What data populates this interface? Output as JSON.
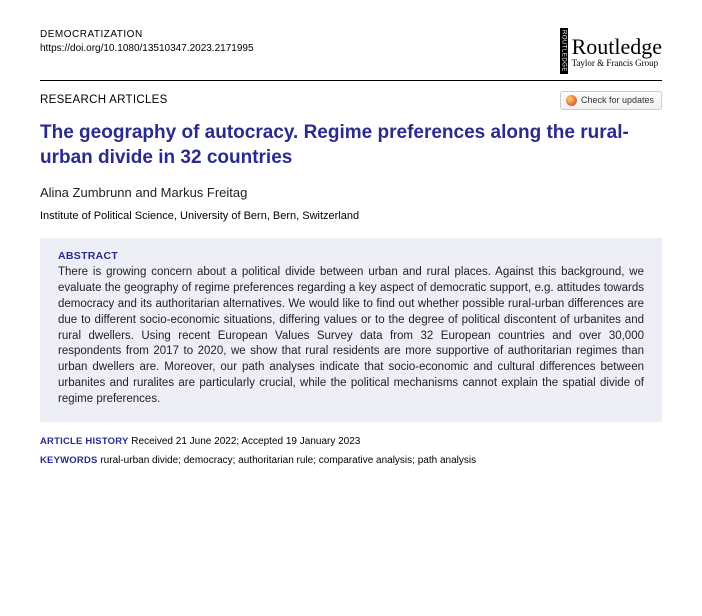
{
  "header": {
    "journal": "DEMOCRATIZATION",
    "doi": "https://doi.org/10.1080/13510347.2023.2171995",
    "publisher_name": "Routledge",
    "publisher_sub": "Taylor & Francis Group",
    "publisher_barlabel": "ROUTLEDGE"
  },
  "section": {
    "label": "RESEARCH ARTICLES",
    "updates_label": "Check for updates"
  },
  "article": {
    "title": "The geography of autocracy. Regime preferences along the rural-urban divide in 32 countries",
    "authors": "Alina Zumbrunn and Markus Freitag",
    "affiliation": "Institute of Political Science, University of Bern, Bern, Switzerland"
  },
  "abstract": {
    "heading": "ABSTRACT",
    "text": "There is growing concern about a political divide between urban and rural places. Against this background, we evaluate the geography of regime preferences regarding a key aspect of democratic support, e.g. attitudes towards democracy and its authoritarian alternatives. We would like to find out whether possible rural-urban differences are due to different socio-economic situations, differing values or to the degree of political discontent of urbanites and rural dwellers. Using recent European Values Survey data from 32 European countries and over 30,000 respondents from 2017 to 2020, we show that rural residents are more supportive of authoritarian regimes than urban dwellers are. Moreover, our path analyses indicate that socio-economic and cultural differences between urbanites and ruralites are particularly crucial, while the political mechanisms cannot explain the spatial divide of regime preferences."
  },
  "history": {
    "label": "ARTICLE HISTORY",
    "text": "Received 21 June 2022; Accepted 19 January 2023"
  },
  "keywords": {
    "label": "KEYWORDS",
    "text": "rural-urban divide; democracy; authoritarian rule; comparative analysis; path analysis"
  },
  "colors": {
    "accent": "#2b2b8f",
    "abstract_bg": "#eeeef7"
  }
}
